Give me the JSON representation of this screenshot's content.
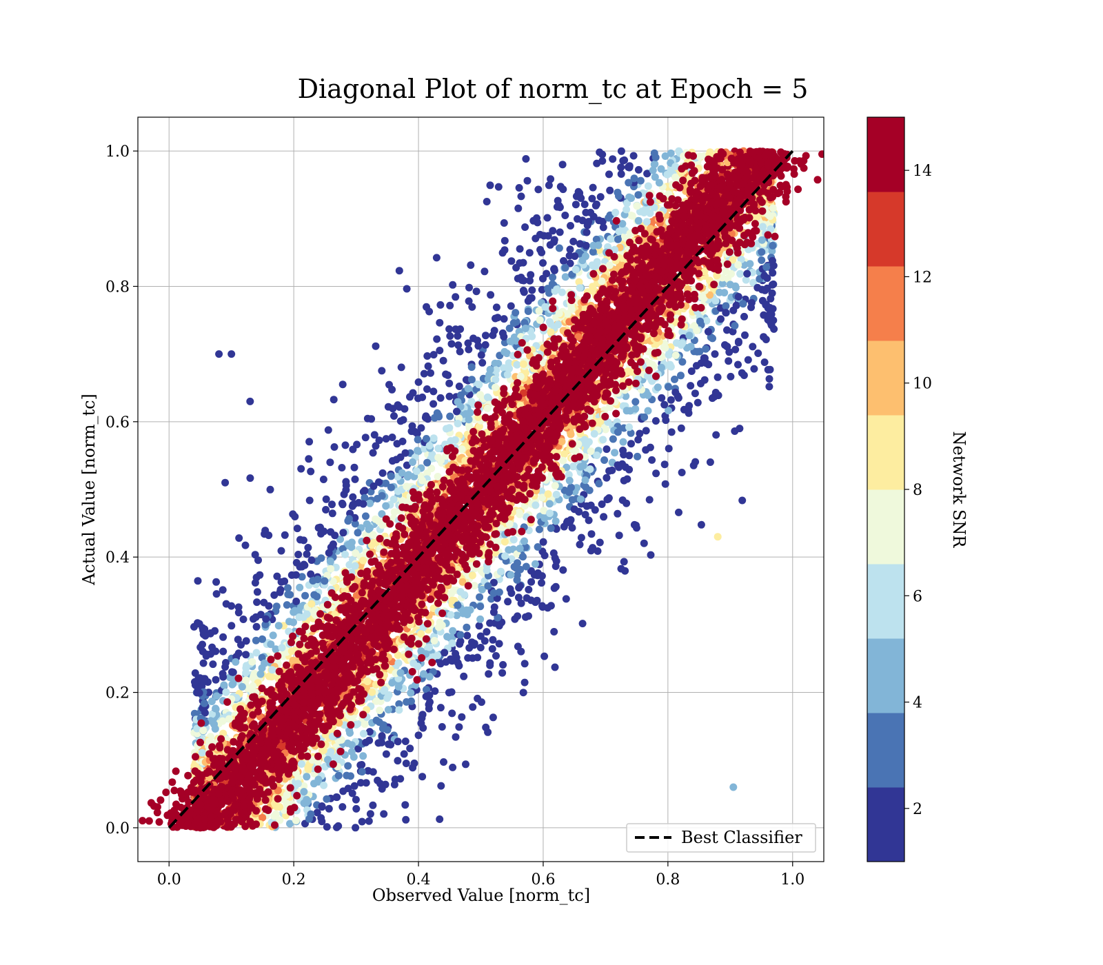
{
  "chart_data": {
    "type": "scatter",
    "title": "Diagonal Plot of norm_tc at Epoch = 5",
    "xlabel": "Observed Value [norm_tc]",
    "ylabel": "Actual Value [norm_tc]",
    "xlim": [
      -0.05,
      1.05
    ],
    "ylim": [
      -0.05,
      1.05
    ],
    "xticks": [
      "0.0",
      "0.2",
      "0.4",
      "0.6",
      "0.8",
      "1.0"
    ],
    "yticks": [
      "0.0",
      "0.2",
      "0.4",
      "0.6",
      "0.8",
      "1.0"
    ],
    "xtick_values": [
      0.0,
      0.2,
      0.4,
      0.6,
      0.8,
      1.0
    ],
    "ytick_values": [
      0.0,
      0.2,
      0.4,
      0.6,
      0.8,
      1.0
    ],
    "grid": true,
    "reference_line": {
      "name": "Best Classifier",
      "x": [
        0.0,
        1.0
      ],
      "y": [
        0.0,
        1.0
      ],
      "style": "dashed",
      "color": "#000000"
    },
    "legend": {
      "entries": [
        "Best Classifier"
      ],
      "placement": "lower-right"
    },
    "colorbar": {
      "label": "Network SNR",
      "range": [
        1,
        15
      ],
      "ticks": [
        "2",
        "4",
        "6",
        "8",
        "10",
        "12",
        "14"
      ],
      "tick_values": [
        2,
        4,
        6,
        8,
        10,
        12,
        14
      ],
      "bins": [
        1,
        2.4,
        3.8,
        5.2,
        6.6,
        8.0,
        9.4,
        10.8,
        12.2,
        13.6,
        15
      ],
      "colors": [
        "#313695",
        "#4a74b4",
        "#82b5d7",
        "#bde2ee",
        "#eff9dc",
        "#fdeda0",
        "#fdbf6f",
        "#f57f4b",
        "#d6392a",
        "#a50026"
      ],
      "colormap": "RdYlBu_r"
    },
    "series_description_points": [
      {
        "x": 0.05,
        "y": 0.0,
        "snr": 14
      },
      {
        "x": 0.08,
        "y": 0.05,
        "snr": 14
      },
      {
        "x": 0.15,
        "y": 0.1,
        "snr": 14
      },
      {
        "x": 0.25,
        "y": 0.2,
        "snr": 14
      },
      {
        "x": 0.35,
        "y": 0.3,
        "snr": 14
      },
      {
        "x": 0.45,
        "y": 0.4,
        "snr": 14
      },
      {
        "x": 0.55,
        "y": 0.5,
        "snr": 14
      },
      {
        "x": 0.65,
        "y": 0.6,
        "snr": 14
      },
      {
        "x": 0.75,
        "y": 0.7,
        "snr": 14
      },
      {
        "x": 0.85,
        "y": 0.8,
        "snr": 14
      },
      {
        "x": 0.92,
        "y": 0.9,
        "snr": 14
      },
      {
        "x": 0.96,
        "y": 0.98,
        "snr": 14
      },
      {
        "x": 0.08,
        "y": 0.7,
        "snr": 2
      },
      {
        "x": 0.1,
        "y": 0.7,
        "snr": 2
      },
      {
        "x": 0.13,
        "y": 0.63,
        "snr": 2
      },
      {
        "x": 0.09,
        "y": 0.51,
        "snr": 2
      },
      {
        "x": 0.905,
        "y": 0.06,
        "snr": 4
      },
      {
        "x": 0.915,
        "y": 0.59,
        "snr": 2
      },
      {
        "x": 0.88,
        "y": 0.43,
        "snr": 8
      }
    ]
  }
}
